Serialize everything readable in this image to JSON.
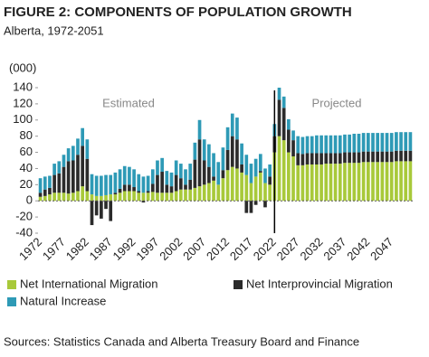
{
  "chart_data": {
    "type": "stacked-bar",
    "title": "FIGURE 2: COMPONENTS OF POPULATION GROWTH",
    "subtitle": "Alberta, 1972-2051",
    "y_unit": "(000)",
    "annotations": [
      "Estimated",
      "Projected"
    ],
    "source": "Sources: Statistics Canada and Alberta Treasury Board and Finance",
    "categories": [
      "1972",
      null,
      null,
      null,
      null,
      "1977",
      null,
      null,
      null,
      null,
      "1982",
      null,
      null,
      null,
      null,
      "1987",
      null,
      null,
      null,
      null,
      "1992",
      null,
      null,
      null,
      null,
      "1997",
      null,
      null,
      null,
      null,
      "2002",
      null,
      null,
      null,
      null,
      "2007",
      null,
      null,
      null,
      null,
      "2012",
      null,
      null,
      null,
      null,
      "2017",
      null,
      null,
      null,
      null,
      "2022",
      null,
      null,
      null,
      null,
      "2027",
      null,
      null,
      null,
      null,
      "2032",
      null,
      null,
      null,
      null,
      "2037",
      null,
      null,
      null,
      null,
      "2042",
      null,
      null,
      null,
      null,
      "2047",
      null,
      null,
      null,
      null
    ],
    "series": [
      {
        "name": "Net International Migration",
        "color": "#a8c93a",
        "values": [
          5,
          6,
          8,
          10,
          10,
          10,
          9,
          10,
          12,
          18,
          12,
          8,
          6,
          6,
          7,
          8,
          8,
          10,
          12,
          12,
          12,
          10,
          10,
          10,
          11,
          10,
          10,
          10,
          10,
          12,
          14,
          14,
          14,
          16,
          18,
          20,
          22,
          25,
          20,
          28,
          38,
          42,
          40,
          35,
          32,
          22,
          30,
          35,
          22,
          20,
          60,
          80,
          75,
          60,
          55,
          44,
          44,
          45,
          45,
          45,
          45,
          46,
          46,
          46,
          46,
          47,
          47,
          47,
          47,
          48,
          48,
          48,
          48,
          48,
          48,
          48,
          49,
          49,
          49,
          49
        ]
      },
      {
        "name": "Net Interprovincial Migration",
        "color": "#2b2b2b",
        "values": [
          5,
          8,
          8,
          22,
          24,
          32,
          40,
          40,
          45,
          50,
          40,
          -30,
          -18,
          -22,
          -10,
          -25,
          2,
          5,
          8,
          8,
          5,
          2,
          -2,
          2,
          10,
          22,
          26,
          10,
          8,
          20,
          14,
          6,
          12,
          35,
          58,
          30,
          20,
          5,
          0,
          10,
          25,
          38,
          36,
          10,
          -15,
          -15,
          -5,
          2,
          -8,
          10,
          20,
          45,
          40,
          28,
          20,
          15,
          14,
          14,
          14,
          14,
          14,
          13,
          13,
          13,
          13,
          13,
          13,
          13,
          13,
          13,
          13,
          13,
          13,
          13,
          13,
          13,
          13,
          13,
          13,
          13
        ]
      },
      {
        "name": "Natural Increase",
        "color": "#2e9ab6",
        "values": [
          18,
          16,
          15,
          14,
          15,
          15,
          16,
          18,
          20,
          22,
          24,
          25,
          25,
          25,
          25,
          24,
          25,
          24,
          23,
          22,
          22,
          21,
          20,
          19,
          18,
          18,
          17,
          17,
          17,
          18,
          18,
          19,
          20,
          21,
          24,
          26,
          28,
          29,
          28,
          28,
          28,
          28,
          27,
          26,
          25,
          24,
          22,
          21,
          18,
          15,
          15,
          15,
          14,
          13,
          12,
          21,
          21,
          21,
          21,
          22,
          22,
          22,
          22,
          22,
          22,
          22,
          22,
          23,
          23,
          23,
          23,
          23,
          23,
          23,
          23,
          23,
          23,
          23,
          23,
          23
        ]
      }
    ],
    "ylim": [
      -40,
      140
    ],
    "yticks": [
      -40,
      -20,
      0,
      20,
      40,
      60,
      80,
      100,
      120,
      140
    ]
  }
}
